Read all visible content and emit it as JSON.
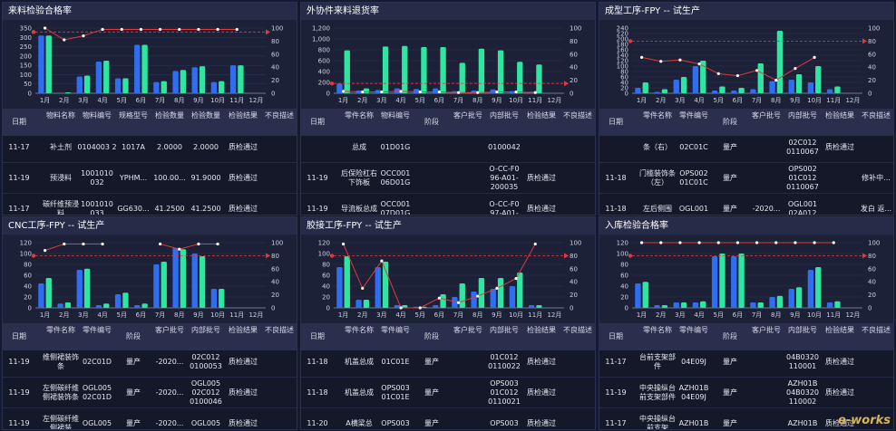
{
  "panels": [
    {
      "title": "来料检验合格率",
      "chart_data": {
        "type": "bar",
        "categories": [
          "1月",
          "2月",
          "3月",
          "4月",
          "5月",
          "6月",
          "7月",
          "8月",
          "9月",
          "10月",
          "11月",
          "12月"
        ],
        "left_ticks": [
          0,
          50,
          100,
          150,
          200,
          250,
          300,
          350
        ],
        "ylim_left": [
          0,
          350
        ],
        "right_ticks": [
          0,
          20,
          40,
          60,
          80,
          100
        ],
        "ylim_right": [
          0,
          100
        ],
        "series": [
          {
            "values": [
              310,
              0,
              90,
              170,
              80,
              260,
              60,
              120,
              140,
              60,
              150,
              0
            ]
          },
          {
            "values": [
              310,
              5,
              95,
              175,
              80,
              260,
              65,
              125,
              145,
              65,
              150,
              0
            ]
          },
          {
            "values": [
              100,
              82,
              88,
              98,
              98,
              98,
              98,
              98,
              98,
              98,
              98,
              null
            ]
          }
        ],
        "target": 94
      },
      "table": {
        "headers": [
          "日期",
          "物料名称",
          "物料编号",
          "规格型号",
          "检验数量",
          "检验数量",
          "检验结果",
          "不良描述"
        ],
        "rows": [
          [
            "11-17",
            "补土剂",
            "0104003 2",
            "1017A",
            "2.0000",
            "2.0000",
            "质检通过",
            ""
          ],
          [
            "11-19",
            "预浸料",
            "1001010 032",
            "YPHM...",
            "100.00...",
            "91.9000",
            "质检通过",
            ""
          ],
          [
            "11-17",
            "碳纤维预浸料",
            "1001010 033",
            "GG630...",
            "41.2500",
            "41.2500",
            "质检通过",
            ""
          ]
        ]
      }
    },
    {
      "title": "外协件来料退货率",
      "chart_data": {
        "type": "bar",
        "categories": [
          "1月",
          "2月",
          "3月",
          "4月",
          "5月",
          "6月",
          "7月",
          "8月",
          "9月",
          "10月",
          "11月",
          "12月"
        ],
        "left_ticks": [
          "0",
          "200",
          "400",
          "600",
          "800",
          "1,000",
          "1,200"
        ],
        "ylim_left": [
          0,
          1200
        ],
        "right_ticks": [
          0,
          20,
          40,
          60,
          80,
          100
        ],
        "ylim_right": [
          0,
          100
        ],
        "series": [
          {
            "values": [
              180,
              50,
              60,
              90,
              80,
              90,
              40,
              50,
              70,
              40,
              30,
              0
            ]
          },
          {
            "values": [
              790,
              90,
              860,
              870,
              850,
              850,
              560,
              820,
              790,
              580,
              530,
              0
            ]
          },
          {
            "values": [
              3,
              2,
              2,
              3,
              2,
              2,
              1,
              1,
              2,
              2,
              1,
              null
            ]
          }
        ],
        "target": 15
      },
      "table": {
        "headers": [
          "日期",
          "零件名称",
          "物料编号",
          "阶段",
          "客户批号",
          "内部批号",
          "检验结果",
          "不良描述"
        ],
        "rows": [
          [
            "",
            "总成",
            "01D01G",
            "",
            "",
            "0100042",
            "",
            ""
          ],
          [
            "11-19",
            "后保险杠右下饰板",
            "OCC001 06D01G",
            "",
            "",
            "O-CC-F0 96-A01- 200035",
            "质检通过",
            ""
          ],
          [
            "11-19",
            "导流板总成",
            "OCC001 07D01G",
            "",
            "",
            "O-CC-F0 97-A01-",
            "质检通过",
            ""
          ]
        ]
      }
    },
    {
      "title": "成型工序-FPY -- 试生产",
      "chart_data": {
        "type": "bar",
        "categories": [
          "1月",
          "2月",
          "3月",
          "4月",
          "5月",
          "6月",
          "7月",
          "8月",
          "9月",
          "10月",
          "11月",
          "12月"
        ],
        "left_ticks": [
          0,
          20,
          40,
          60,
          80,
          100,
          120,
          140,
          160,
          180,
          200,
          220,
          240
        ],
        "ylim_left": [
          0,
          240
        ],
        "right_ticks": [
          0,
          20,
          40,
          60,
          80,
          100
        ],
        "ylim_right": [
          0,
          100
        ],
        "series": [
          {
            "values": [
              20,
              5,
              50,
              100,
              10,
              10,
              15,
              45,
              50,
              40,
              15,
              0
            ]
          },
          {
            "values": [
              40,
              15,
              60,
              120,
              25,
              20,
              110,
              230,
              70,
              100,
              25,
              0
            ]
          },
          {
            "values": [
              55,
              49,
              51,
              45,
              30,
              27,
              35,
              20,
              38,
              55,
              null,
              null
            ]
          }
        ],
        "target": 80
      },
      "table": {
        "headers": [
          "日期",
          "零件名称",
          "零件编号",
          "阶段",
          "客户批号",
          "内部批号",
          "检验结果",
          "不良描述"
        ],
        "rows": [
          [
            "",
            "条（右）",
            "02C01C",
            "量产",
            "",
            "02C012 0110067",
            "质检通过",
            ""
          ],
          [
            "11-18",
            "门槛装饰条（左）",
            "OPS002 01C01C",
            "量产",
            "",
            "OPS002 01C012 0110067",
            "",
            "修补中..."
          ],
          [
            "11-18",
            "左后侧围",
            "OGL001",
            "量产",
            "-2020...",
            "OGL001 02A012",
            "",
            "发白 返..."
          ]
        ]
      }
    },
    {
      "title": "CNC工序-FPY -- 试生产",
      "chart_data": {
        "type": "bar",
        "categories": [
          "1月",
          "2月",
          "3月",
          "4月",
          "5月",
          "6月",
          "7月",
          "8月",
          "9月",
          "10月",
          "11月",
          "12月"
        ],
        "left_ticks": [
          0,
          20,
          40,
          60,
          80,
          100,
          120
        ],
        "ylim_left": [
          0,
          120
        ],
        "right_ticks": [
          0,
          20,
          40,
          60,
          80,
          100
        ],
        "ylim_right": [
          0,
          100
        ],
        "series": [
          {
            "values": [
              45,
              8,
              70,
              5,
              25,
              5,
              80,
              110,
              100,
              35,
              0,
              0
            ]
          },
          {
            "values": [
              55,
              10,
              72,
              8,
              28,
              8,
              85,
              108,
              95,
              35,
              0,
              0
            ]
          },
          {
            "values": [
              88,
              98,
              98,
              98,
              null,
              null,
              98,
              90,
              98,
              98,
              null,
              null
            ]
          }
        ],
        "target": 80
      },
      "table": {
        "headers": [
          "日期",
          "零件名称",
          "零件编号",
          "阶段",
          "客户批号",
          "内部批号",
          "检验结果",
          "不良描述"
        ],
        "rows": [
          [
            "11-19",
            "维侧裙装饰条",
            "02C01D",
            "量产",
            "-2020...",
            "02C012 0100053",
            "质检通过",
            ""
          ],
          [
            "11-19",
            "左侧碳纤维侧裙装饰条",
            "OGL005 02C01D",
            "量产",
            "-2020...",
            "OGL005 02C012 0100046",
            "质检通过",
            ""
          ],
          [
            "11-19",
            "左侧碳纤维侧裙装",
            "OGL005",
            "量产",
            "-2020...",
            "OGL005",
            "质检通过",
            ""
          ]
        ]
      }
    },
    {
      "title": "胶接工序-FPY -- 试生产",
      "chart_data": {
        "type": "bar",
        "categories": [
          "1月",
          "2月",
          "3月",
          "4月",
          "5月",
          "6月",
          "7月",
          "8月",
          "9月",
          "10月",
          "11月",
          "12月"
        ],
        "left_ticks": [
          0,
          20,
          40,
          60,
          80,
          100,
          120
        ],
        "ylim_left": [
          0,
          120
        ],
        "right_ticks": [
          0,
          20,
          40,
          60,
          80,
          100
        ],
        "ylim_right": [
          0,
          100
        ],
        "series": [
          {
            "values": [
              75,
              15,
              75,
              5,
              2,
              5,
              20,
              30,
              35,
              40,
              5,
              0
            ]
          },
          {
            "values": [
              95,
              15,
              85,
              5,
              2,
              25,
              45,
              55,
              55,
              65,
              5,
              0
            ]
          },
          {
            "values": [
              98,
              30,
              72,
              0,
              0,
              15,
              8,
              18,
              30,
              45,
              98,
              null
            ]
          }
        ],
        "target": 80
      },
      "table": {
        "headers": [
          "日期",
          "零件名称",
          "零件编号",
          "阶段",
          "客户批号",
          "内部批号",
          "检验结果",
          "不良描述"
        ],
        "rows": [
          [
            "11-18",
            "机盖总成",
            "01C01E",
            "量产",
            "",
            "01C012 0110022",
            "质检通过",
            ""
          ],
          [
            "11-18",
            "机盖总成",
            "OPS003 01C01E",
            "量产",
            "",
            "OPS003 01C012 0110021",
            "质检通过",
            ""
          ],
          [
            "11-20",
            "A横梁总",
            "OPS003",
            "量产",
            "",
            "OPS003",
            "质检通过",
            ""
          ]
        ]
      }
    },
    {
      "title": "入库检验合格率",
      "chart_data": {
        "type": "bar",
        "categories": [
          "1月",
          "2月",
          "3月",
          "4月",
          "5月",
          "6月",
          "7月",
          "8月",
          "9月",
          "10月",
          "11月",
          "12月"
        ],
        "left_ticks": [
          0,
          20,
          40,
          60,
          80,
          100,
          120
        ],
        "ylim_left": [
          0,
          120
        ],
        "right_ticks": [
          0,
          20,
          40,
          60,
          80,
          100
        ],
        "ylim_right": [
          0,
          100
        ],
        "series": [
          {
            "values": [
              45,
              5,
              10,
              10,
              95,
              95,
              10,
              20,
              35,
              70,
              10,
              0
            ]
          },
          {
            "values": [
              48,
              5,
              10,
              12,
              100,
              100,
              10,
              22,
              38,
              75,
              12,
              0
            ]
          },
          {
            "values": [
              100,
              100,
              100,
              100,
              100,
              100,
              100,
              100,
              100,
              100,
              100,
              null
            ]
          }
        ],
        "target": 80
      },
      "table": {
        "headers": [
          "日期",
          "零件名称",
          "零件编号",
          "阶段",
          "客户批号",
          "内部批号",
          "检验结果",
          "不良描述"
        ],
        "rows": [
          [
            "11-17",
            "台前支架部件",
            "04E09J",
            "量产",
            "",
            "04B0320 110001",
            "质检通过",
            ""
          ],
          [
            "11-19",
            "中央操纵台前支架部件",
            "AZH01B 04E09J",
            "量产",
            "",
            "AZH01B 04B0320 110002",
            "质检通过",
            ""
          ],
          [
            "11-17",
            "中央操纵台前支架",
            "AZH01B",
            "量产",
            "",
            "AZH01B",
            "质检通过",
            ""
          ]
        ]
      }
    }
  ],
  "watermark": "e-works",
  "colors": {
    "bar_blue": "#2f6ef2",
    "bar_green": "#2ee6a0",
    "line": "#e23a3a",
    "target": "#e23a3a"
  }
}
